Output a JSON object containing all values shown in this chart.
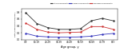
{
  "age_groups": [
    "0-9",
    "10-19",
    "20-29",
    "30-39",
    "40-49",
    "50-59",
    "60-69",
    "70-79",
    "80+"
  ],
  "total_encephalitis": [
    0.78,
    0.47,
    0.35,
    0.3,
    0.3,
    0.32,
    0.55,
    0.62,
    0.55
  ],
  "known_encephalitis": [
    0.18,
    0.1,
    0.08,
    0.07,
    0.07,
    0.08,
    0.1,
    0.15,
    0.18
  ],
  "unknown_encephalitis": [
    0.48,
    0.3,
    0.22,
    0.2,
    0.21,
    0.22,
    0.38,
    0.38,
    0.3
  ],
  "total_color": "#333333",
  "known_color": "#3333bb",
  "unknown_color": "#cc3333",
  "xlabel": "Age group, y",
  "ylabel": "Rate (cases/100,000/year)",
  "ylim": [
    0.0,
    0.9
  ],
  "yticks": [
    0.0,
    0.2,
    0.4,
    0.6,
    0.8
  ],
  "legend_labels": [
    "Total encephalitis",
    "Known encephalitis",
    "Unknown encephalitis"
  ],
  "background_color": "#ffffff",
  "legend_total_color": "#333333",
  "legend_known_color": "#3333bb",
  "legend_unknown_color": "#cc3333"
}
